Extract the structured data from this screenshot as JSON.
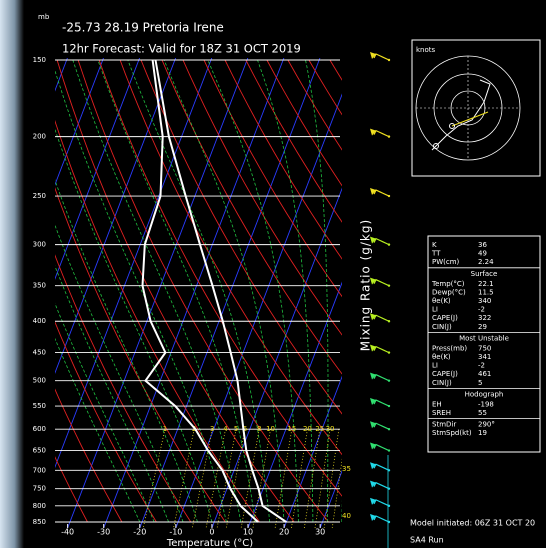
{
  "chart_data": {
    "type": "skewt",
    "title": "-25.73 28.19 Pretoria Irene",
    "subtitle": "12hr Forecast: Valid for 18Z 31 OCT 2019",
    "ylabel": "mb",
    "xlabel": "Temperature (°C)",
    "mixing_ratio_label": "Mixing Ratio (g/kg)",
    "mixing_ratios": [
      1,
      2,
      3,
      4,
      5,
      6,
      8,
      10,
      15,
      20,
      25,
      30
    ],
    "mixing_ratios_edge": [
      35,
      40
    ],
    "yscale": "log",
    "ylim": [
      850,
      150
    ],
    "yticks": [
      150,
      200,
      250,
      300,
      350,
      400,
      450,
      500,
      550,
      600,
      650,
      700,
      750,
      800,
      850
    ],
    "xlim": [
      -43.5,
      35.5
    ],
    "xticks": [
      -40,
      -30,
      -20,
      -10,
      0,
      10,
      20,
      30
    ],
    "levels": [
      850,
      800,
      750,
      700,
      650,
      600,
      550,
      500,
      450,
      400,
      350,
      300,
      250,
      200,
      150
    ],
    "series": [
      {
        "color": "#ffffff",
        "values": [
          20.6,
          12.3,
          9.3,
          5.6,
          1.8,
          -1.3,
          -4.6,
          -8.2,
          -13.1,
          -18.7,
          -25.4,
          -33.3,
          -42.5,
          -53.6,
          -65.6
        ]
      },
      {
        "color": "#ffffff",
        "values": [
          12.8,
          6.2,
          1.5,
          -2.7,
          -8.8,
          -14.6,
          -22.7,
          -33.7,
          -31.2,
          -38.7,
          -44.8,
          -48.6,
          -49.5,
          -55.3,
          -66.4
        ]
      }
    ]
  },
  "hodograph": {
    "label": "knots"
  },
  "indices": {
    "rows": [
      [
        "K",
        36
      ],
      [
        "TT",
        49
      ],
      [
        "PW(cm)",
        2.24
      ]
    ],
    "sections": [
      {
        "title": "Surface",
        "rows": [
          [
            "Temp(°C)",
            22.1
          ],
          [
            "Dewp(°C)",
            11.5
          ],
          [
            "θe(K)",
            340
          ],
          [
            "LI",
            -2
          ],
          [
            "CAPE(J)",
            322
          ],
          [
            "CIN(J)",
            29
          ]
        ]
      },
      {
        "title": "Most Unstable",
        "rows": [
          [
            "Press(mb)",
            750
          ],
          [
            "θe(K)",
            341
          ],
          [
            "LI",
            -2
          ],
          [
            "CAPE(J)",
            461
          ],
          [
            "CIN(J)",
            5
          ]
        ]
      },
      {
        "title": "Hodograph",
        "rows": [
          [
            "EH",
            -198
          ],
          [
            "SREH",
            55
          ]
        ]
      },
      {
        "rows": [
          [
            "StmDir",
            "290°"
          ],
          [
            "StmSpd(kt)",
            19
          ]
        ]
      }
    ]
  },
  "footer": {
    "model": "Model initiated: 06Z 31 OCT 20",
    "run": "SA4 Run"
  }
}
